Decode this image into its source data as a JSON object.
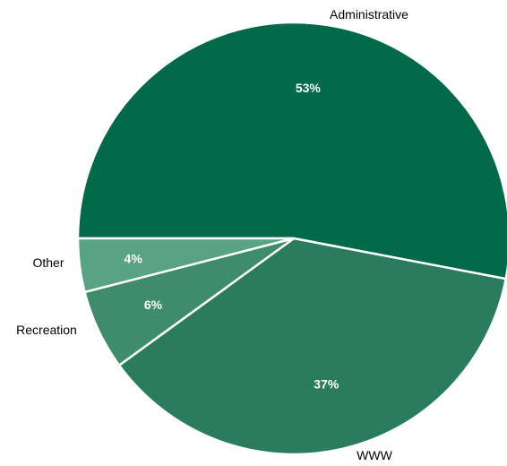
{
  "chart_data": {
    "type": "pie",
    "title": "",
    "slices": [
      {
        "label": "Administrative",
        "value": 53,
        "display": "53%",
        "color": "#026a4b"
      },
      {
        "label": "WWW",
        "value": 37,
        "display": "37%",
        "color": "#2a7c5d"
      },
      {
        "label": "Recreation",
        "value": 6,
        "display": "6%",
        "color": "#3f8c6c"
      },
      {
        "label": "Other",
        "value": 4,
        "display": "4%",
        "color": "#5aa284"
      }
    ],
    "legend": "none",
    "labels": "outside category names, inside percentages"
  }
}
